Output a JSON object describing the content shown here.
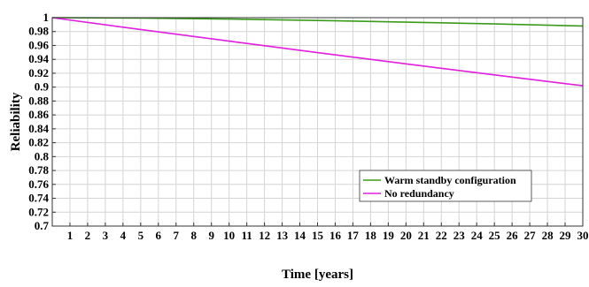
{
  "chart_data": {
    "type": "line",
    "title": "",
    "xlabel": "Time [years]",
    "ylabel": "Reliability",
    "xlim": [
      0,
      30
    ],
    "ylim": [
      0.7,
      1
    ],
    "x_ticks": [
      1,
      2,
      3,
      4,
      5,
      6,
      7,
      8,
      9,
      10,
      11,
      12,
      13,
      14,
      15,
      16,
      17,
      18,
      19,
      20,
      21,
      22,
      23,
      24,
      25,
      26,
      27,
      28,
      29,
      30
    ],
    "y_ticks": [
      0.7,
      0.72,
      0.74,
      0.76,
      0.78,
      0.8,
      0.82,
      0.84,
      0.86,
      0.88,
      0.9,
      0.92,
      0.94,
      0.96,
      0.98,
      1
    ],
    "y_tick_labels": [
      "0.7",
      "0.72",
      "0.74",
      "0.76",
      "0.78",
      "0.8",
      "0.82",
      "0.84",
      "0.86",
      "0.88",
      "0.9",
      "0.92",
      "0.94",
      "0.96",
      "0.98",
      "1"
    ],
    "grid": true,
    "legend_position": "lower-right",
    "series": [
      {
        "name": "Warm standby configuration",
        "color": "#3a9a1a",
        "x": [
          0,
          5,
          10,
          15,
          20,
          25,
          30
        ],
        "y": [
          1.0,
          0.9995,
          0.998,
          0.996,
          0.9935,
          0.991,
          0.988
        ]
      },
      {
        "name": "No redundancy",
        "color": "#e01ee0",
        "x": [
          0,
          5,
          10,
          15,
          20,
          25,
          30
        ],
        "y": [
          1.0,
          0.9829,
          0.9662,
          0.9497,
          0.9335,
          0.9176,
          0.902
        ]
      }
    ]
  }
}
